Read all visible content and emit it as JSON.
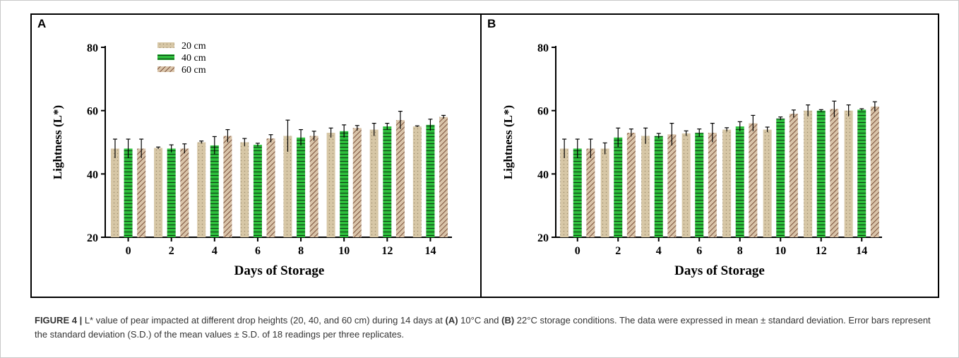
{
  "legend": [
    "20 cm",
    "40 cm",
    "60 cm"
  ],
  "colors": {
    "c20": "#d7c7a6",
    "c40": "#2dbf3c",
    "c60": "#d9c4a9",
    "stripe": "#7a4f3a",
    "dot": "#9a8a6a"
  },
  "chart_data": [
    {
      "panel": "A",
      "type": "bar",
      "ylabel": "Lightness (L*)",
      "xlabel": "Days of Storage",
      "ylim": [
        20,
        80
      ],
      "yticks": [
        "20",
        "40",
        "60",
        "80"
      ],
      "categories": [
        "0",
        "2",
        "4",
        "6",
        "8",
        "10",
        "12",
        "14"
      ],
      "legend_position": "top-left",
      "series": [
        {
          "name": "20 cm",
          "values": [
            48,
            48.2,
            50,
            50,
            52,
            53,
            54,
            55
          ],
          "errors": [
            3,
            0.3,
            0.4,
            1.2,
            5,
            1.5,
            2,
            0.2
          ]
        },
        {
          "name": "40 cm",
          "values": [
            48,
            48,
            49,
            49.2,
            51.5,
            53.5,
            55,
            55.5
          ],
          "errors": [
            3,
            1.2,
            2.8,
            0.5,
            2.5,
            2,
            1,
            1.8
          ]
        },
        {
          "name": "60 cm",
          "values": [
            48,
            48,
            52,
            51.2,
            52,
            54.5,
            57,
            58
          ],
          "errors": [
            3,
            1.5,
            2,
            1.2,
            1.5,
            0.8,
            2.8,
            0.5
          ]
        }
      ]
    },
    {
      "panel": "B",
      "type": "bar",
      "ylabel": "Lightness (L*)",
      "xlabel": "Days of Storage",
      "ylim": [
        20,
        80
      ],
      "yticks": [
        "20",
        "40",
        "60",
        "80"
      ],
      "categories": [
        "0",
        "2",
        "4",
        "6",
        "8",
        "10",
        "12",
        "14"
      ],
      "series": [
        {
          "name": "20 cm",
          "values": [
            48,
            48,
            52,
            52.8,
            54,
            54,
            60,
            60
          ],
          "errors": [
            3,
            1.8,
            2.5,
            0.8,
            0.6,
            0.8,
            1.8,
            1.8
          ]
        },
        {
          "name": "40 cm",
          "values": [
            48,
            51.5,
            52,
            53,
            55,
            57.5,
            60,
            60.3
          ],
          "errors": [
            3,
            3,
            0.8,
            1.2,
            1.5,
            0.5,
            0.3,
            0.3
          ]
        },
        {
          "name": "60 cm",
          "values": [
            48,
            53,
            52.5,
            53,
            56,
            59,
            60.5,
            61.3
          ],
          "errors": [
            3,
            1.2,
            3.5,
            3,
            2.5,
            1.2,
            2.5,
            1.5
          ]
        }
      ]
    }
  ],
  "caption": {
    "label": "FIGURE 4 |",
    "t1": " L* value of pear impacted at different drop heights (20, 40, and 60 cm) during 14 days at ",
    "a": "(A)",
    "t2": " 10°C and ",
    "b": "(B)",
    "t3": " 22°C storage conditions. The data were expressed in mean ± standard deviation. Error bars represent the standard deviation (S.D.) of the mean values ± S.D. of 18 readings per three replicates."
  }
}
